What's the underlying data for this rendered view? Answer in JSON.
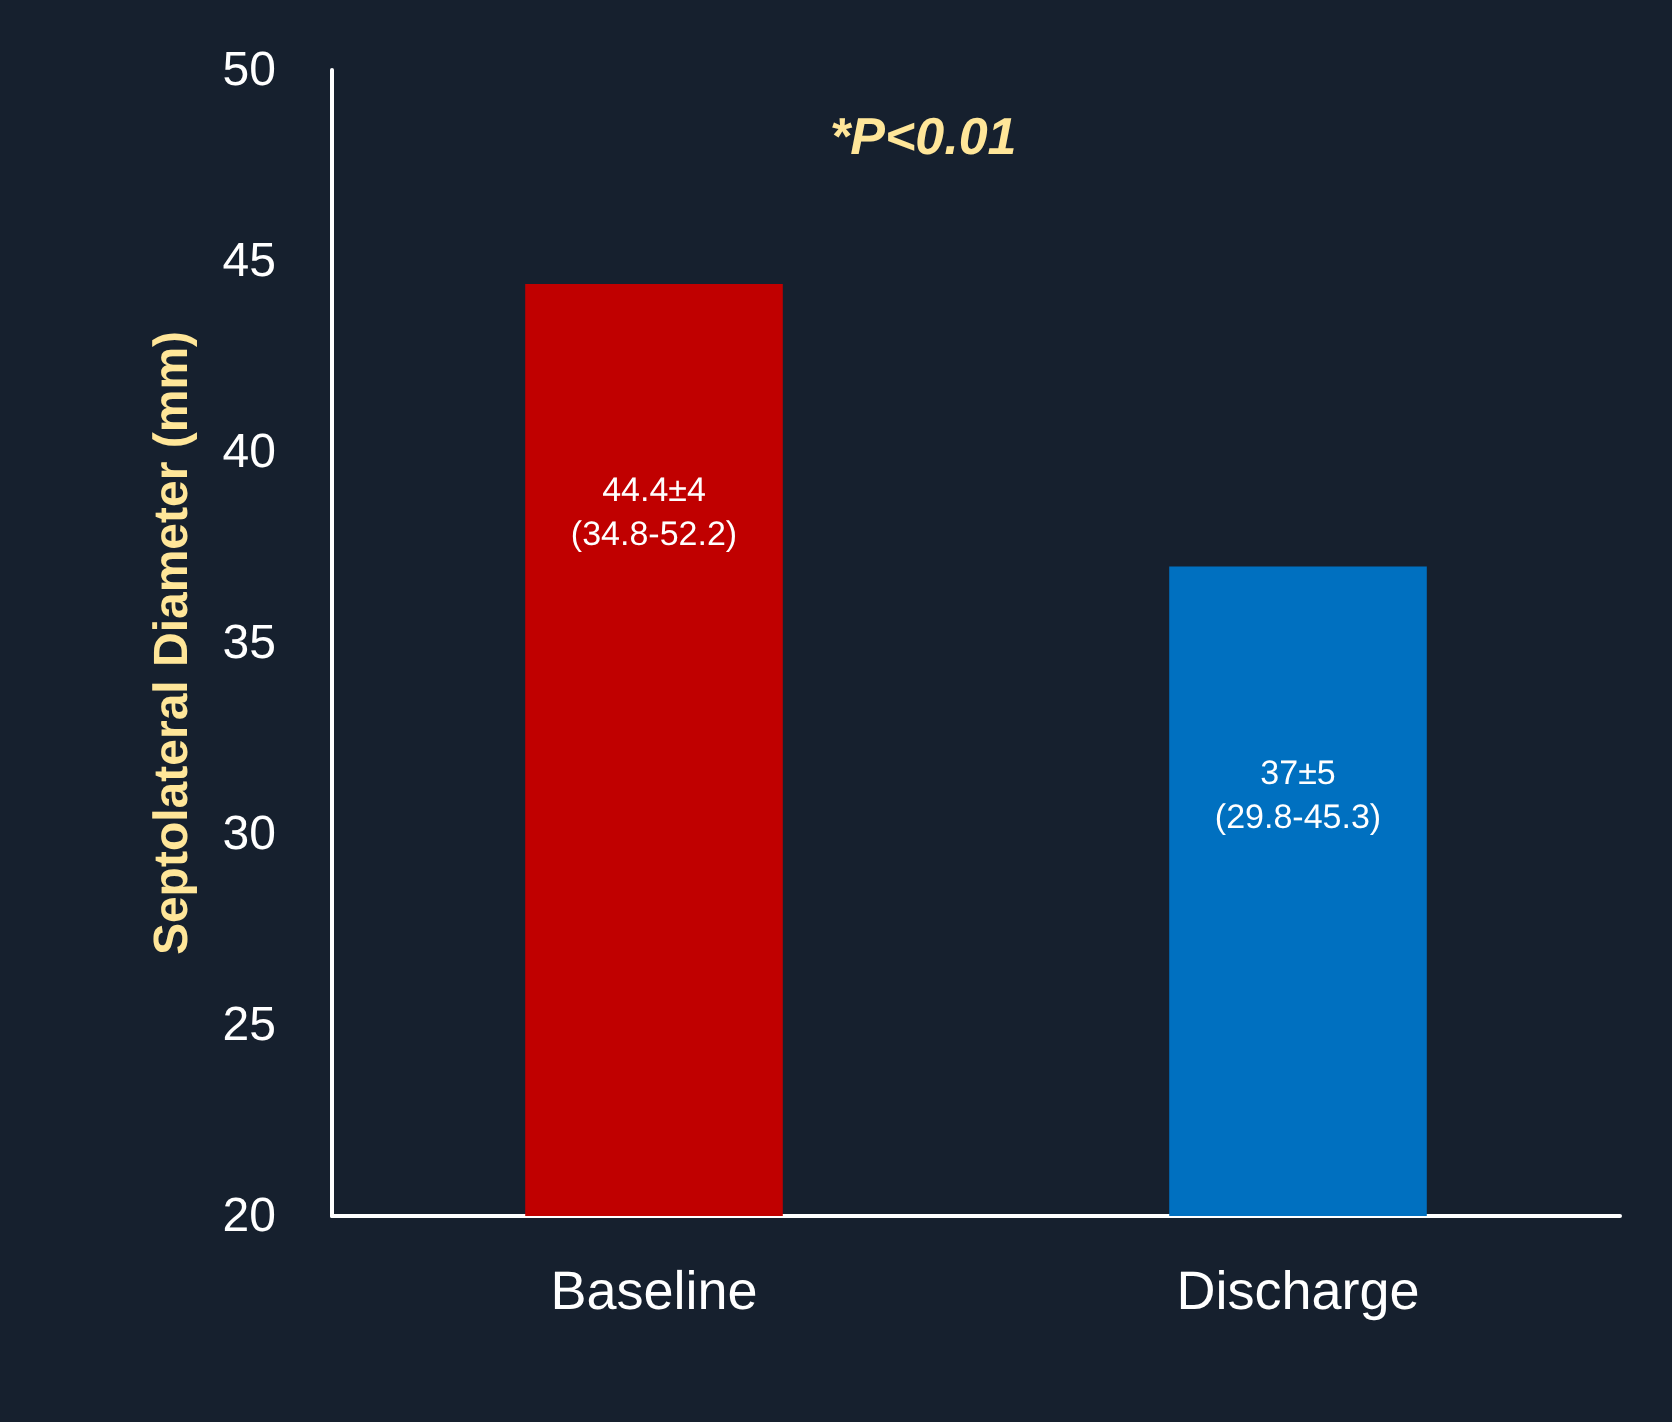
{
  "chart_data": {
    "type": "bar",
    "ylabel": "Septolateral Diameter (mm)",
    "annotations": [
      "*P<0.01"
    ],
    "categories": [
      "Baseline",
      "Discharge"
    ],
    "values": [
      44.4,
      37
    ],
    "colors": [
      "#c00000",
      "#0070c0"
    ],
    "value_labels": [
      "44.4±4\n(34.8-52.2)",
      "37±5\n(29.8-45.3)"
    ],
    "ylim": [
      20,
      50
    ],
    "yticks": [
      20,
      25,
      30,
      35,
      40,
      45,
      50
    ],
    "grid": false
  }
}
